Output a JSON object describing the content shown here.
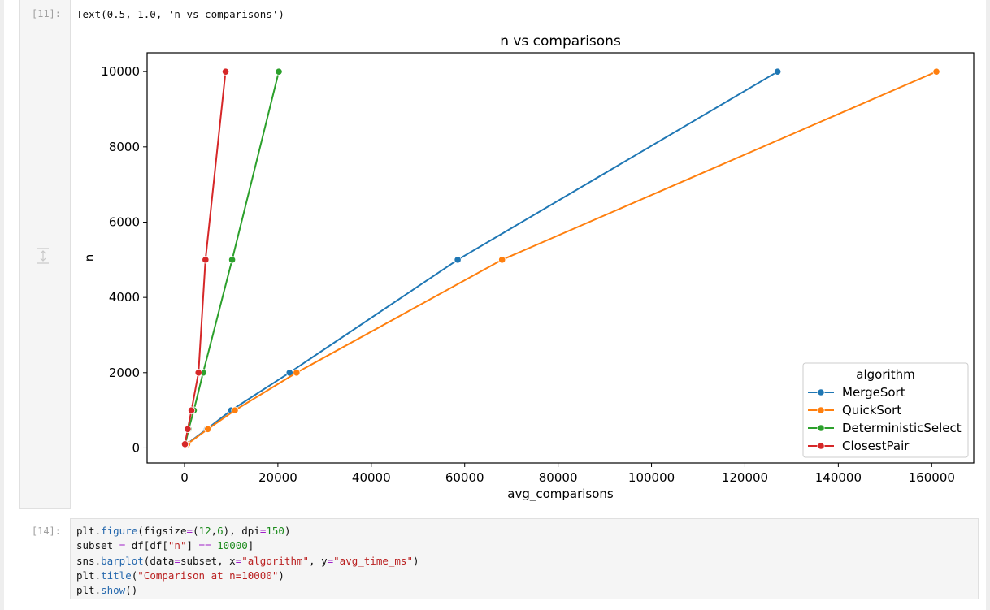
{
  "output_cell": {
    "prompt": "[11]:",
    "text": "Text(0.5, 1.0, 'n vs comparisons')"
  },
  "code_cell": {
    "prompt": "[14]:",
    "lines": [
      [
        [
          "pl",
          "plt."
        ],
        [
          "fn",
          "figure"
        ],
        [
          "pl",
          "(figsize"
        ],
        [
          "op",
          "="
        ],
        [
          "pl",
          "("
        ],
        [
          "num",
          "12"
        ],
        [
          "pl",
          ","
        ],
        [
          "num",
          "6"
        ],
        [
          "pl",
          "), dpi"
        ],
        [
          "op",
          "="
        ],
        [
          "num",
          "150"
        ],
        [
          "pl",
          ")"
        ]
      ],
      [
        [
          "pl",
          "subset "
        ],
        [
          "op",
          "="
        ],
        [
          "pl",
          " df[df["
        ],
        [
          "str",
          "\"n\""
        ],
        [
          "pl",
          "] "
        ],
        [
          "op",
          "=="
        ],
        [
          "pl",
          " "
        ],
        [
          "num",
          "10000"
        ],
        [
          "pl",
          "]"
        ]
      ],
      [
        [
          "pl",
          "sns."
        ],
        [
          "fn",
          "barplot"
        ],
        [
          "pl",
          "(data"
        ],
        [
          "op",
          "="
        ],
        [
          "pl",
          "subset, x"
        ],
        [
          "op",
          "="
        ],
        [
          "str",
          "\"algorithm\""
        ],
        [
          "pl",
          ", y"
        ],
        [
          "op",
          "="
        ],
        [
          "str",
          "\"avg_time_ms\""
        ],
        [
          "pl",
          ")"
        ]
      ],
      [
        [
          "pl",
          "plt."
        ],
        [
          "fn",
          "title"
        ],
        [
          "pl",
          "("
        ],
        [
          "str",
          "\"Comparison at n=10000\""
        ],
        [
          "pl",
          ")"
        ]
      ],
      [
        [
          "pl",
          "plt."
        ],
        [
          "fn",
          "show"
        ],
        [
          "pl",
          "()"
        ]
      ]
    ]
  },
  "chart_data": {
    "type": "line",
    "title": "n vs comparisons",
    "xlabel": "avg_comparisons",
    "ylabel": "n",
    "xlim": [
      -8000,
      169000
    ],
    "ylim": [
      -400,
      10500
    ],
    "xticks": [
      0,
      20000,
      40000,
      60000,
      80000,
      100000,
      120000,
      140000,
      160000
    ],
    "yticks": [
      0,
      2000,
      4000,
      6000,
      8000,
      10000
    ],
    "grid": false,
    "legend": {
      "title": "algorithm",
      "placement": "lower-right"
    },
    "series": [
      {
        "name": "MergeSort",
        "color": "#1f77b4",
        "x": [
          500,
          4800,
          10000,
          22500,
          58500,
          127000
        ],
        "y": [
          100,
          500,
          1000,
          2000,
          5000,
          10000
        ]
      },
      {
        "name": "QuickSort",
        "color": "#ff7f0e",
        "x": [
          600,
          5000,
          10800,
          24000,
          68000,
          161000
        ],
        "y": [
          100,
          500,
          1000,
          2000,
          5000,
          10000
        ]
      },
      {
        "name": "DeterministicSelect",
        "color": "#2ca02c",
        "x": [
          200,
          900,
          2000,
          4000,
          10200,
          20200
        ],
        "y": [
          100,
          500,
          1000,
          2000,
          5000,
          10000
        ]
      },
      {
        "name": "ClosestPair",
        "color": "#d62728",
        "x": [
          100,
          700,
          1500,
          3000,
          4500,
          8800
        ],
        "y": [
          100,
          500,
          1000,
          2000,
          5000,
          10000
        ]
      }
    ]
  }
}
